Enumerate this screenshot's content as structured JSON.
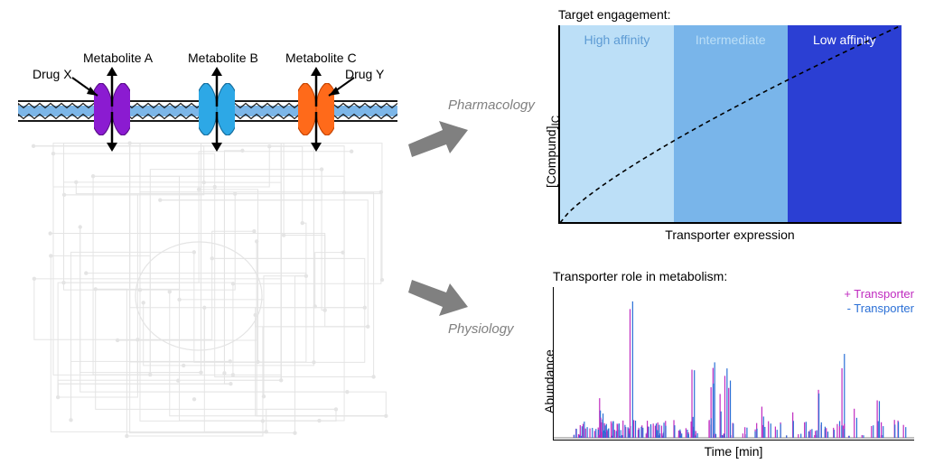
{
  "left": {
    "labels": {
      "metaboliteA": "Metabolite A",
      "metaboliteB": "Metabolite B",
      "metaboliteC": "Metabolite C",
      "drugX": "Drug X",
      "drugY": "Drug Y"
    },
    "transporters": [
      {
        "x": 84,
        "fill": "#8b1bd1",
        "stroke": "#5a0e8a"
      },
      {
        "x": 200,
        "fill": "#2da8e6",
        "stroke": "#146c9c"
      },
      {
        "x": 310,
        "fill": "#ff6a1a",
        "stroke": "#c44300"
      }
    ],
    "membrane": {
      "outer_line_color": "#1a1a1a",
      "inner_fill": "#7cb6e8",
      "squiggle_color": "#1a1a1a"
    },
    "pathway_color": "#8a8a8a"
  },
  "center": {
    "pharmacology": "Pharmacology",
    "physiology": "Physiology",
    "arrow_color": "#808080"
  },
  "affinity": {
    "title": "Target engagement:",
    "ylabel": "[Compund]",
    "ylabel_sub": "IC",
    "xlabel": "Transporter expression",
    "bands": [
      {
        "label": "High affinity",
        "color": "#bcdff7",
        "text": "#5d9bd4",
        "start": 0,
        "end": 0.333
      },
      {
        "label": "Intermediate",
        "color": "#79b5ea",
        "text": "#bcdff7",
        "start": 0.333,
        "end": 0.666
      },
      {
        "label": "Low affinity",
        "color": "#2b3fd3",
        "text": "#ffffff",
        "start": 0.666,
        "end": 1.0
      }
    ],
    "line_color": "#000000"
  },
  "spectrum": {
    "title": "Transporter role in metabolism:",
    "ylabel": "Abundance",
    "xlabel": "Time [min]",
    "legend_plus": "+ Transporter",
    "legend_minus": "- Transporter",
    "color_plus": "#c02bc0",
    "color_minus": "#2a6fd6",
    "n_peaks": 120,
    "xlim": [
      0,
      1
    ],
    "ylim": [
      0,
      1
    ]
  }
}
